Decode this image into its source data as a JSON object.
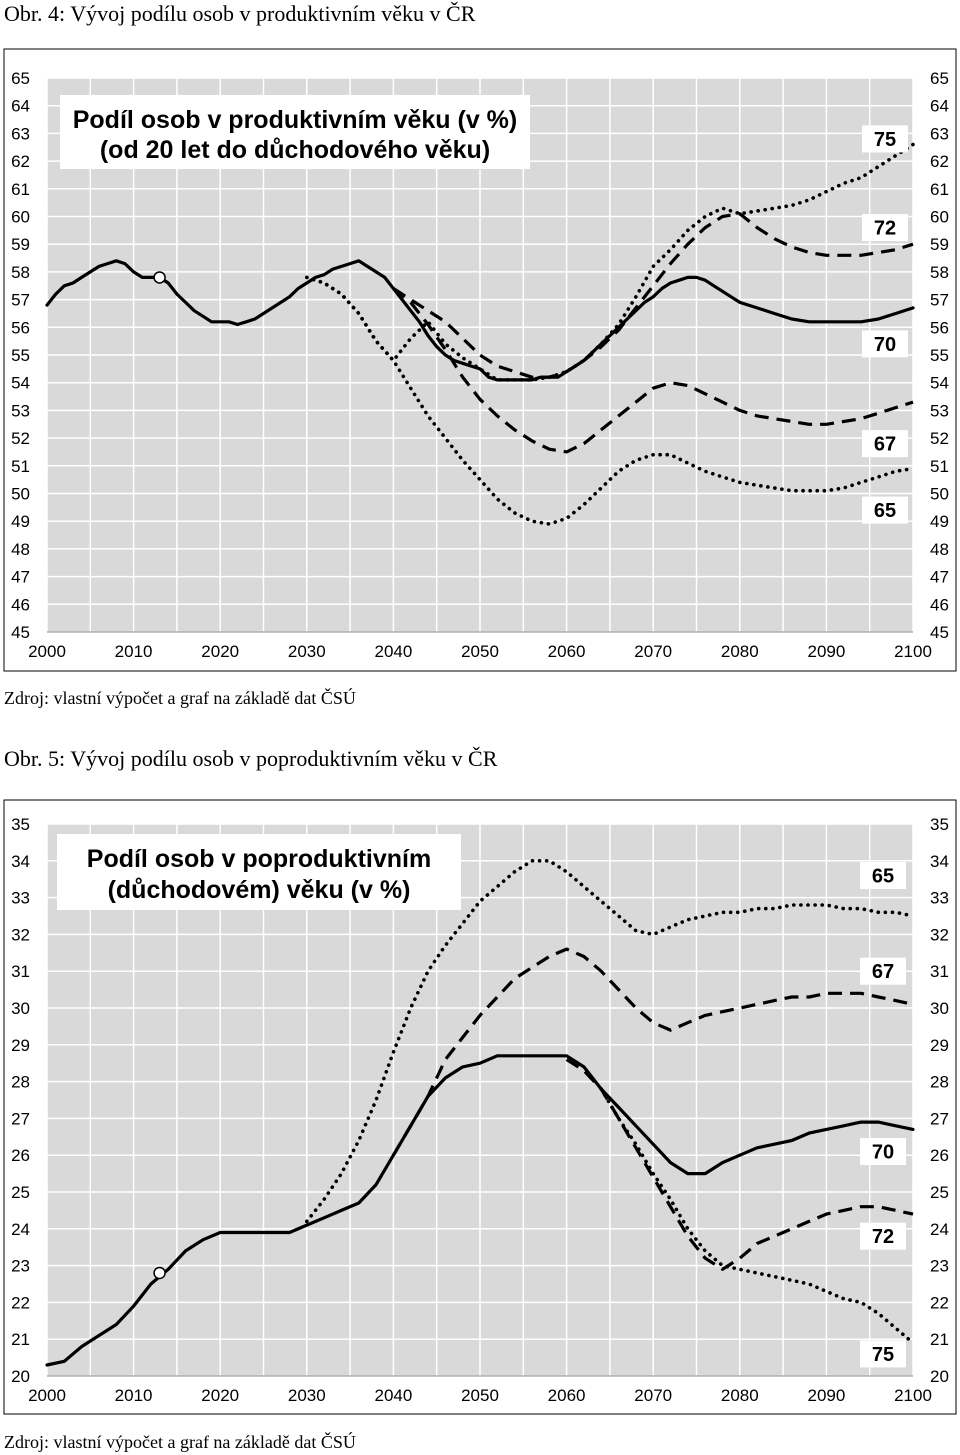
{
  "figure4": {
    "heading": "Obr. 4: Vývoj podílu osob v produktivním věku v ČR",
    "source": "Zdroj: vlastní výpočet a graf na základě dat ČSÚ"
  },
  "figure5": {
    "heading": "Obr. 5: Vývoj podílu osob v poproduktivním věku v ČR",
    "source": "Zdroj: vlastní výpočet a graf na základě dat ČSÚ"
  },
  "colors": {
    "plot_bg": "#d9d9d9",
    "grid": "#ffffff",
    "line": "#000000",
    "label_bg": "#ffffff"
  },
  "chart_data": [
    {
      "type": "line",
      "title_lines": [
        "Podíl osob v produktivním věku (v %)",
        "(od 20 let do důchodového věku)"
      ],
      "x_ticks": [
        "2000",
        "2010",
        "2020",
        "2030",
        "2040",
        "2050",
        "2060",
        "2070",
        "2080",
        "2090",
        "2100"
      ],
      "y_ticks": [
        "45",
        "46",
        "47",
        "48",
        "49",
        "50",
        "51",
        "52",
        "53",
        "54",
        "55",
        "56",
        "57",
        "58",
        "59",
        "60",
        "61",
        "62",
        "63",
        "64",
        "65"
      ],
      "xlim": [
        2000,
        2100
      ],
      "ylim": [
        45,
        65
      ],
      "grid": true,
      "marker": {
        "x": 2013,
        "y": 57.8
      },
      "series": [
        {
          "name": "70",
          "style": "solid",
          "label_y": 55.4,
          "x": [
            2000,
            2001,
            2002,
            2003,
            2004,
            2005,
            2006,
            2007,
            2008,
            2009,
            2010,
            2011,
            2012,
            2013,
            2014,
            2015,
            2016,
            2017,
            2018,
            2019,
            2020,
            2021,
            2022,
            2023,
            2024,
            2025,
            2026,
            2027,
            2028,
            2029,
            2030,
            2031,
            2032,
            2033,
            2034,
            2035,
            2036,
            2037,
            2038,
            2039,
            2040,
            2041,
            2042,
            2043,
            2044,
            2045,
            2046,
            2047,
            2048,
            2049,
            2050,
            2051,
            2052,
            2053,
            2054,
            2055,
            2056,
            2057,
            2058,
            2059,
            2060,
            2061,
            2062,
            2063,
            2064,
            2065,
            2066,
            2067,
            2068,
            2069,
            2070,
            2071,
            2072,
            2073,
            2074,
            2075,
            2076,
            2077,
            2078,
            2079,
            2080,
            2082,
            2084,
            2086,
            2088,
            2090,
            2092,
            2094,
            2096,
            2098,
            2100
          ],
          "y": [
            56.8,
            57.2,
            57.5,
            57.6,
            57.8,
            58.0,
            58.2,
            58.3,
            58.4,
            58.3,
            58.0,
            57.8,
            57.8,
            57.8,
            57.6,
            57.2,
            56.9,
            56.6,
            56.4,
            56.2,
            56.2,
            56.2,
            56.1,
            56.2,
            56.3,
            56.5,
            56.7,
            56.9,
            57.1,
            57.4,
            57.6,
            57.8,
            57.9,
            58.1,
            58.2,
            58.3,
            58.4,
            58.2,
            58.0,
            57.8,
            57.4,
            57.0,
            56.6,
            56.2,
            55.7,
            55.3,
            55.0,
            54.8,
            54.7,
            54.6,
            54.5,
            54.2,
            54.1,
            54.1,
            54.1,
            54.1,
            54.1,
            54.2,
            54.2,
            54.2,
            54.4,
            54.6,
            54.8,
            55.1,
            55.4,
            55.7,
            56.0,
            56.3,
            56.6,
            56.9,
            57.1,
            57.4,
            57.6,
            57.7,
            57.8,
            57.8,
            57.7,
            57.5,
            57.3,
            57.1,
            56.9,
            56.7,
            56.5,
            56.3,
            56.2,
            56.2,
            56.2,
            56.2,
            56.3,
            56.5,
            56.7
          ]
        },
        {
          "name": "75",
          "style": "dotted",
          "label_y": 62.8,
          "x": [
            2030,
            2032,
            2034,
            2036,
            2038,
            2040,
            2042,
            2044,
            2046,
            2048,
            2050,
            2052,
            2054,
            2056,
            2058,
            2060,
            2062,
            2064,
            2066,
            2068,
            2070,
            2072,
            2074,
            2076,
            2078,
            2080,
            2082,
            2084,
            2086,
            2088,
            2090,
            2092,
            2094,
            2096,
            2098,
            2100
          ],
          "y": [
            57.8,
            57.6,
            57.2,
            56.5,
            55.5,
            54.8,
            55.6,
            56.2,
            55.4,
            54.9,
            54.5,
            54.1,
            54.1,
            54.1,
            54.2,
            54.4,
            54.8,
            55.4,
            56.1,
            57.1,
            58.2,
            58.8,
            59.5,
            60.0,
            60.3,
            60.1,
            60.2,
            60.3,
            60.4,
            60.6,
            60.9,
            61.2,
            61.4,
            61.8,
            62.2,
            62.6
          ]
        },
        {
          "name": "72",
          "style": "dashed",
          "label_y": 59.6,
          "x": [
            2040,
            2042,
            2044,
            2046,
            2048,
            2050,
            2052,
            2054,
            2056,
            2058,
            2060,
            2062,
            2064,
            2066,
            2068,
            2070,
            2072,
            2074,
            2076,
            2078,
            2080,
            2082,
            2084,
            2086,
            2088,
            2090,
            2092,
            2094,
            2096,
            2098,
            2100
          ],
          "y": [
            57.4,
            57.0,
            56.6,
            56.2,
            55.6,
            55.0,
            54.6,
            54.4,
            54.2,
            54.2,
            54.4,
            54.8,
            55.3,
            55.9,
            56.7,
            57.5,
            58.3,
            59.0,
            59.6,
            60.0,
            60.1,
            59.6,
            59.2,
            58.9,
            58.7,
            58.6,
            58.6,
            58.6,
            58.7,
            58.8,
            59.0
          ]
        },
        {
          "name": "67",
          "style": "dashed",
          "label_y": 51.8,
          "x": [
            2040,
            2042,
            2044,
            2046,
            2048,
            2050,
            2052,
            2054,
            2056,
            2058,
            2060,
            2062,
            2064,
            2066,
            2068,
            2070,
            2072,
            2074,
            2076,
            2078,
            2080,
            2082,
            2084,
            2086,
            2088,
            2090,
            2092,
            2094,
            2096,
            2098,
            2100
          ],
          "y": [
            57.4,
            56.9,
            56.1,
            55.2,
            54.2,
            53.4,
            52.8,
            52.3,
            51.9,
            51.6,
            51.5,
            51.8,
            52.3,
            52.8,
            53.3,
            53.8,
            54.0,
            53.9,
            53.6,
            53.3,
            53.0,
            52.8,
            52.7,
            52.6,
            52.5,
            52.5,
            52.6,
            52.7,
            52.9,
            53.1,
            53.3
          ]
        },
        {
          "name": "65",
          "style": "dotted",
          "label_y": 49.4,
          "x": [
            2030,
            2032,
            2034,
            2036,
            2038,
            2040,
            2042,
            2044,
            2046,
            2048,
            2050,
            2052,
            2054,
            2056,
            2058,
            2060,
            2062,
            2064,
            2066,
            2068,
            2070,
            2072,
            2074,
            2076,
            2078,
            2080,
            2082,
            2084,
            2086,
            2088,
            2090,
            2092,
            2094,
            2096,
            2098,
            2100
          ],
          "y": [
            57.8,
            57.6,
            57.2,
            56.5,
            55.5,
            54.8,
            53.8,
            52.8,
            52.0,
            51.2,
            50.5,
            49.8,
            49.3,
            49.0,
            48.9,
            49.1,
            49.6,
            50.2,
            50.8,
            51.2,
            51.4,
            51.4,
            51.1,
            50.8,
            50.6,
            50.4,
            50.3,
            50.2,
            50.1,
            50.1,
            50.1,
            50.2,
            50.4,
            50.6,
            50.8,
            50.9
          ]
        }
      ]
    },
    {
      "type": "line",
      "title_lines": [
        "Podíl osob v poproduktivním",
        "(důchodovém) věku (v %)"
      ],
      "x_ticks": [
        "2000",
        "2010",
        "2020",
        "2030",
        "2040",
        "2050",
        "2060",
        "2070",
        "2080",
        "2090",
        "2100"
      ],
      "y_ticks": [
        "20",
        "21",
        "22",
        "23",
        "24",
        "25",
        "26",
        "27",
        "28",
        "29",
        "30",
        "31",
        "32",
        "33",
        "34",
        "35"
      ],
      "xlim": [
        2000,
        2100
      ],
      "ylim": [
        20,
        35
      ],
      "grid": true,
      "marker": {
        "x": 2013,
        "y": 22.8
      },
      "series": [
        {
          "name": "70",
          "style": "solid",
          "label_y": 26.1,
          "x": [
            2000,
            2002,
            2004,
            2006,
            2008,
            2010,
            2012,
            2014,
            2016,
            2018,
            2020,
            2022,
            2024,
            2026,
            2028,
            2030,
            2032,
            2034,
            2036,
            2038,
            2040,
            2042,
            2044,
            2046,
            2048,
            2050,
            2052,
            2054,
            2056,
            2058,
            2060,
            2062,
            2064,
            2066,
            2068,
            2070,
            2072,
            2074,
            2076,
            2078,
            2080,
            2082,
            2084,
            2086,
            2088,
            2090,
            2092,
            2094,
            2096,
            2098,
            2100
          ],
          "y": [
            20.3,
            20.4,
            20.8,
            21.1,
            21.4,
            21.9,
            22.5,
            22.9,
            23.4,
            23.7,
            23.9,
            23.9,
            23.9,
            23.9,
            23.9,
            24.1,
            24.3,
            24.5,
            24.7,
            25.2,
            26.0,
            26.8,
            27.6,
            28.1,
            28.4,
            28.5,
            28.7,
            28.7,
            28.7,
            28.7,
            28.7,
            28.4,
            27.8,
            27.3,
            26.8,
            26.3,
            25.8,
            25.5,
            25.5,
            25.8,
            26.0,
            26.2,
            26.3,
            26.4,
            26.6,
            26.7,
            26.8,
            26.9,
            26.9,
            26.8,
            26.7
          ]
        },
        {
          "name": "65",
          "style": "dotted",
          "label_y": 33.6,
          "x": [
            2030,
            2032,
            2034,
            2036,
            2038,
            2040,
            2042,
            2044,
            2046,
            2048,
            2050,
            2052,
            2054,
            2056,
            2058,
            2060,
            2062,
            2064,
            2066,
            2068,
            2070,
            2072,
            2074,
            2076,
            2078,
            2080,
            2082,
            2084,
            2086,
            2088,
            2090,
            2092,
            2094,
            2096,
            2098,
            2100
          ],
          "y": [
            24.2,
            24.8,
            25.5,
            26.4,
            27.5,
            28.8,
            30.0,
            31.0,
            31.7,
            32.3,
            32.9,
            33.3,
            33.7,
            34.0,
            34.0,
            33.7,
            33.3,
            32.9,
            32.5,
            32.1,
            32.0,
            32.2,
            32.4,
            32.5,
            32.6,
            32.6,
            32.7,
            32.7,
            32.8,
            32.8,
            32.8,
            32.7,
            32.7,
            32.6,
            32.6,
            32.5
          ]
        },
        {
          "name": "67",
          "style": "dashed",
          "label_y": 31.0,
          "x": [
            2040,
            2042,
            2044,
            2046,
            2048,
            2050,
            2052,
            2054,
            2056,
            2058,
            2060,
            2062,
            2064,
            2066,
            2068,
            2070,
            2072,
            2074,
            2076,
            2078,
            2080,
            2082,
            2084,
            2086,
            2088,
            2090,
            2092,
            2094,
            2096,
            2098,
            2100
          ],
          "y": [
            26.0,
            26.8,
            27.6,
            28.6,
            29.2,
            29.8,
            30.3,
            30.8,
            31.1,
            31.4,
            31.6,
            31.4,
            31.0,
            30.5,
            30.0,
            29.6,
            29.4,
            29.6,
            29.8,
            29.9,
            30.0,
            30.1,
            30.2,
            30.3,
            30.3,
            30.4,
            30.4,
            30.4,
            30.3,
            30.2,
            30.1
          ]
        },
        {
          "name": "72",
          "style": "dashed",
          "label_y": 23.8,
          "x": [
            2060,
            2062,
            2064,
            2066,
            2068,
            2070,
            2072,
            2074,
            2076,
            2078,
            2080,
            2082,
            2084,
            2086,
            2088,
            2090,
            2092,
            2094,
            2096,
            2098,
            2100
          ],
          "y": [
            28.6,
            28.3,
            27.8,
            27.0,
            26.2,
            25.4,
            24.6,
            23.8,
            23.2,
            22.9,
            23.2,
            23.6,
            23.8,
            24.0,
            24.2,
            24.4,
            24.5,
            24.6,
            24.6,
            24.5,
            24.4
          ]
        },
        {
          "name": "75",
          "style": "dotted",
          "label_y": 20.6,
          "x": [
            2064,
            2066,
            2068,
            2070,
            2072,
            2074,
            2076,
            2078,
            2080,
            2082,
            2084,
            2086,
            2088,
            2090,
            2092,
            2094,
            2096,
            2098,
            2100
          ],
          "y": [
            27.8,
            27.0,
            26.3,
            25.5,
            24.8,
            24.0,
            23.4,
            23.0,
            22.9,
            22.8,
            22.7,
            22.6,
            22.5,
            22.3,
            22.1,
            22.0,
            21.7,
            21.3,
            20.9
          ]
        }
      ]
    }
  ]
}
